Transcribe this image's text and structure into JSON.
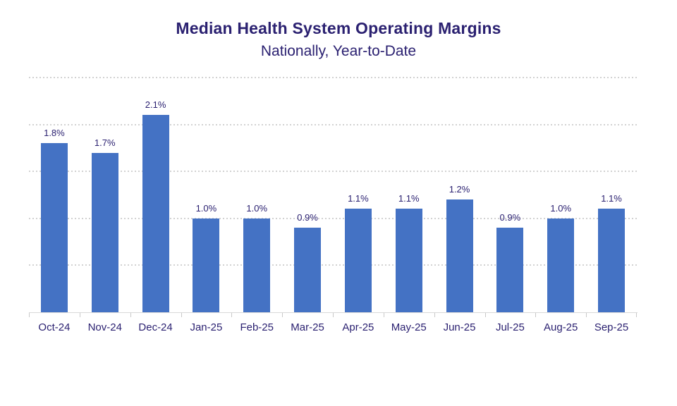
{
  "header": {
    "title": "Median Health System Operating Margins",
    "subtitle": "Nationally, Year-to-Date"
  },
  "colors": {
    "background": "#FFFFFF",
    "bar": "#4472C4",
    "title_text": "#2B2171",
    "data_label_text": "#2B2171",
    "x_axis_label_text": "#2B2171",
    "gridline": "#D2D2D2",
    "axis_line": "#D9D9D9"
  },
  "chart_data": {
    "type": "bar",
    "title": "Median Health System Operating Margins",
    "subtitle": "Nationally, Year-to-Date",
    "categories": [
      "Oct-24",
      "Nov-24",
      "Dec-24",
      "Jan-25",
      "Feb-25",
      "Mar-25",
      "Apr-25",
      "May-25",
      "Jun-25",
      "Jul-25",
      "Aug-25",
      "Sep-25"
    ],
    "values": [
      1.8,
      1.7,
      2.1,
      1.0,
      1.0,
      0.9,
      1.1,
      1.1,
      1.2,
      0.9,
      1.0,
      1.1
    ],
    "value_labels": [
      "1.8%",
      "1.7%",
      "2.1%",
      "1.0%",
      "1.0%",
      "0.9%",
      "1.1%",
      "1.1%",
      "1.2%",
      "0.9%",
      "1.0%",
      "1.1%"
    ],
    "xlabel": "",
    "ylabel": "",
    "ylim": [
      0,
      2.5
    ],
    "grid_step": 0.5,
    "grid": "horizontal-dotted",
    "y_tick_labels_shown": false,
    "legend": "none"
  }
}
